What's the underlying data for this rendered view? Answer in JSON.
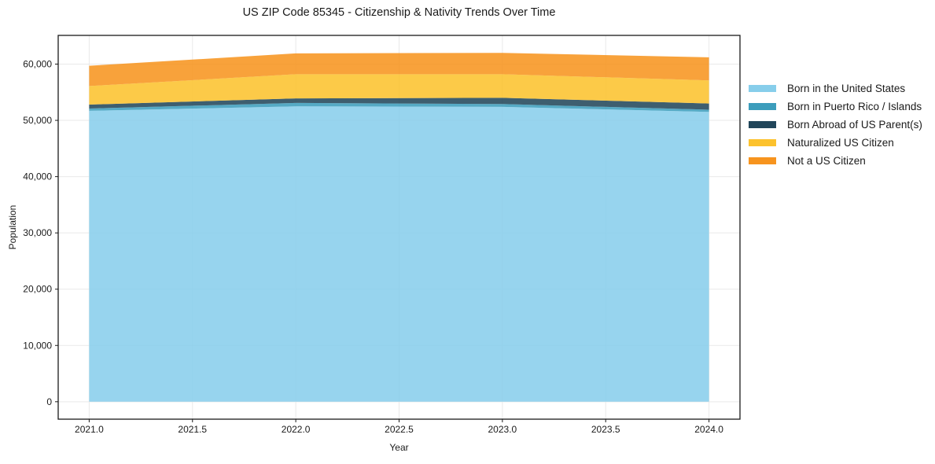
{
  "figure": {
    "title": "US ZIP Code 85345 - Citizenship & Nativity Trends Over Time"
  },
  "chart_data": {
    "type": "area",
    "stacked": true,
    "title": "US ZIP Code 85345 - Citizenship & Nativity Trends Over Time",
    "xlabel": "Year",
    "ylabel": "Population",
    "x": [
      2021,
      2022,
      2023,
      2024
    ],
    "series": [
      {
        "name": "Born in the United States",
        "color": "#87CEEB",
        "values": [
          51700,
          52500,
          52400,
          51500
        ]
      },
      {
        "name": "Born in Puerto Rico / Islands",
        "color": "#3C9DBC",
        "values": [
          400,
          600,
          500,
          400
        ]
      },
      {
        "name": "Born Abroad of US Parent(s)",
        "color": "#21465A",
        "values": [
          700,
          800,
          1100,
          1100
        ]
      },
      {
        "name": "Naturalized US Citizen",
        "color": "#FCC22D",
        "values": [
          3300,
          4300,
          4200,
          4100
        ]
      },
      {
        "name": "Not a US Citizen",
        "color": "#F7941E",
        "values": [
          3600,
          3700,
          3800,
          4100
        ]
      }
    ],
    "totals": [
      59700,
      61900,
      62000,
      61200
    ],
    "xlim": [
      2020.85,
      2024.15
    ],
    "ylim": [
      -3100,
      65100
    ],
    "xticks": {
      "values": [
        2021.0,
        2021.5,
        2022.0,
        2022.5,
        2023.0,
        2023.5,
        2024.0
      ],
      "labels": [
        "2021.0",
        "2021.5",
        "2022.0",
        "2022.5",
        "2023.0",
        "2023.5",
        "2024.0"
      ]
    },
    "yticks": {
      "values": [
        0,
        10000,
        20000,
        30000,
        40000,
        50000,
        60000
      ],
      "labels": [
        "0",
        "10,000",
        "20,000",
        "30,000",
        "40,000",
        "50,000",
        "60,000"
      ]
    },
    "grid": true,
    "grid_color": "#e9e9e9",
    "legend_position": "right",
    "fill_opacity": 0.87,
    "frame_color": "#1a1a1a",
    "text_color": "#1a1a1a"
  }
}
